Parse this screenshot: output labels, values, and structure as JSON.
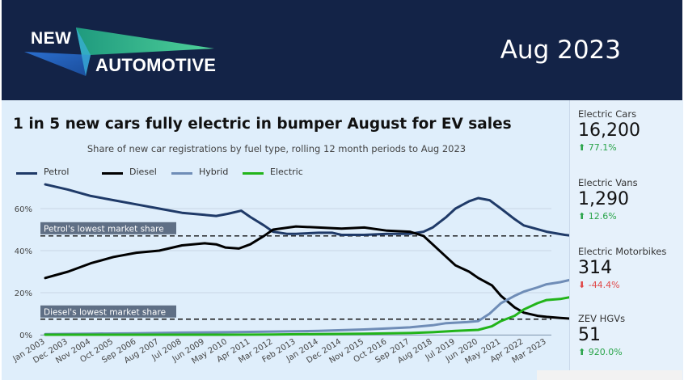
{
  "header": {
    "logo_top": "NEW",
    "logo_bottom": "AUTOMOTIVE",
    "date": "Aug 2023"
  },
  "colors": {
    "header_bg": "#132347",
    "petrol": "#1f3a68",
    "diesel": "#000000",
    "hybrid": "#6f8db7",
    "electric": "#22b41a",
    "up": "#2aa44a",
    "down": "#e04848"
  },
  "chart_data": {
    "type": "line",
    "title": "1 in 5 new cars fully electric in bumper August for EV sales",
    "subtitle": "Share of new car registrations by fuel type, rolling 12 month periods to Aug 2023",
    "x": [
      "Jan 2003",
      "Dec 2003",
      "Nov 2004",
      "Oct 2005",
      "Sep 2006",
      "Aug 2007",
      "Jul 2008",
      "Jun 2009",
      "May 2010",
      "Apr 2011",
      "Mar 2012",
      "Feb 2013",
      "Jan 2014",
      "Dec 2014",
      "Nov 2015",
      "Oct 2016",
      "Sep 2017",
      "Aug 2018",
      "Jul 2019",
      "Jun 2020",
      "May 2021",
      "Apr 2022",
      "Mar 2023"
    ],
    "y_ticks": [
      "0%",
      "20%",
      "40%",
      "60%"
    ],
    "ylim": [
      0,
      70
    ],
    "grid": true,
    "legend_position": "top-left",
    "series": [
      {
        "name": "Petrol",
        "color": "#1f3a68",
        "points": [
          [
            0,
            71.5
          ],
          [
            1,
            69
          ],
          [
            2,
            66
          ],
          [
            3,
            64
          ],
          [
            4,
            62
          ],
          [
            5,
            60
          ],
          [
            6,
            58
          ],
          [
            7,
            57
          ],
          [
            7.5,
            56.5
          ],
          [
            8,
            57.5
          ],
          [
            8.6,
            59
          ],
          [
            9,
            56
          ],
          [
            9.6,
            52
          ],
          [
            10,
            49
          ],
          [
            10.6,
            48
          ],
          [
            11,
            48
          ],
          [
            12,
            48.5
          ],
          [
            12.6,
            48.5
          ],
          [
            13,
            47.5
          ],
          [
            14,
            47.5
          ],
          [
            15,
            48
          ],
          [
            16,
            48
          ],
          [
            16.6,
            49
          ],
          [
            17,
            51
          ],
          [
            17.6,
            56
          ],
          [
            18,
            60
          ],
          [
            18.6,
            63.5
          ],
          [
            19,
            65
          ],
          [
            19.5,
            64
          ],
          [
            20,
            60
          ],
          [
            20.6,
            55
          ],
          [
            21,
            52
          ],
          [
            22,
            49
          ],
          [
            22.8,
            47.5
          ],
          [
            23.2,
            47
          ]
        ]
      },
      {
        "name": "Diesel",
        "color": "#000000",
        "points": [
          [
            0,
            27
          ],
          [
            1,
            30
          ],
          [
            2,
            34
          ],
          [
            3,
            37
          ],
          [
            4,
            39
          ],
          [
            5,
            40
          ],
          [
            6,
            42.5
          ],
          [
            7,
            43.5
          ],
          [
            7.5,
            43
          ],
          [
            7.9,
            41.5
          ],
          [
            8.5,
            41
          ],
          [
            9,
            43
          ],
          [
            9.6,
            47
          ],
          [
            10,
            50
          ],
          [
            11,
            51.5
          ],
          [
            12,
            51
          ],
          [
            13,
            50.5
          ],
          [
            14,
            51
          ],
          [
            15,
            49.5
          ],
          [
            16,
            49
          ],
          [
            16.6,
            47
          ],
          [
            17,
            43
          ],
          [
            17.6,
            37
          ],
          [
            18,
            33
          ],
          [
            18.6,
            30
          ],
          [
            19,
            27
          ],
          [
            19.6,
            23.5
          ],
          [
            20,
            18.5
          ],
          [
            20.6,
            13
          ],
          [
            21,
            10.5
          ],
          [
            21.6,
            9
          ],
          [
            22,
            8.5
          ],
          [
            22.6,
            8
          ],
          [
            23.2,
            7.5
          ]
        ]
      },
      {
        "name": "Hybrid",
        "color": "#6f8db7",
        "points": [
          [
            0,
            0.3
          ],
          [
            2,
            0.5
          ],
          [
            4,
            0.7
          ],
          [
            6,
            1
          ],
          [
            8,
            1.2
          ],
          [
            10,
            1.5
          ],
          [
            12,
            1.8
          ],
          [
            14,
            2.5
          ],
          [
            15,
            3
          ],
          [
            16,
            3.5
          ],
          [
            17,
            4.5
          ],
          [
            17.6,
            5.5
          ],
          [
            18.5,
            6
          ],
          [
            19,
            6.5
          ],
          [
            19.5,
            10
          ],
          [
            20,
            15
          ],
          [
            20.6,
            18.5
          ],
          [
            21,
            20.5
          ],
          [
            21.6,
            22.5
          ],
          [
            22,
            24
          ],
          [
            22.6,
            25
          ],
          [
            23.2,
            26.5
          ]
        ]
      },
      {
        "name": "Electric",
        "color": "#22b41a",
        "points": [
          [
            0,
            0
          ],
          [
            8,
            0
          ],
          [
            10,
            0.1
          ],
          [
            12,
            0.3
          ],
          [
            14,
            0.5
          ],
          [
            16,
            0.8
          ],
          [
            17,
            1.2
          ],
          [
            18,
            1.8
          ],
          [
            19,
            2.3
          ],
          [
            19.6,
            4
          ],
          [
            20,
            6.5
          ],
          [
            20.6,
            9
          ],
          [
            21,
            12
          ],
          [
            21.6,
            15
          ],
          [
            22,
            16.5
          ],
          [
            22.6,
            17
          ],
          [
            23.2,
            18.2
          ]
        ]
      }
    ],
    "reference_lines": [
      {
        "label": "Petrol's lowest market share",
        "value": 47
      },
      {
        "label": "Diesel's lowest market share",
        "value": 7.4
      }
    ]
  },
  "stats": [
    {
      "label": "Electric Cars",
      "value": "16,200",
      "change": "77.1%",
      "direction": "up"
    },
    {
      "label": "Electric Vans",
      "value": "1,290",
      "change": "12.6%",
      "direction": "up"
    },
    {
      "label": "Electric Motorbikes",
      "value": "314",
      "change": "-44.4%",
      "direction": "down"
    },
    {
      "label": "ZEV HGVs",
      "value": "51",
      "change": "920.0%",
      "direction": "up"
    }
  ]
}
